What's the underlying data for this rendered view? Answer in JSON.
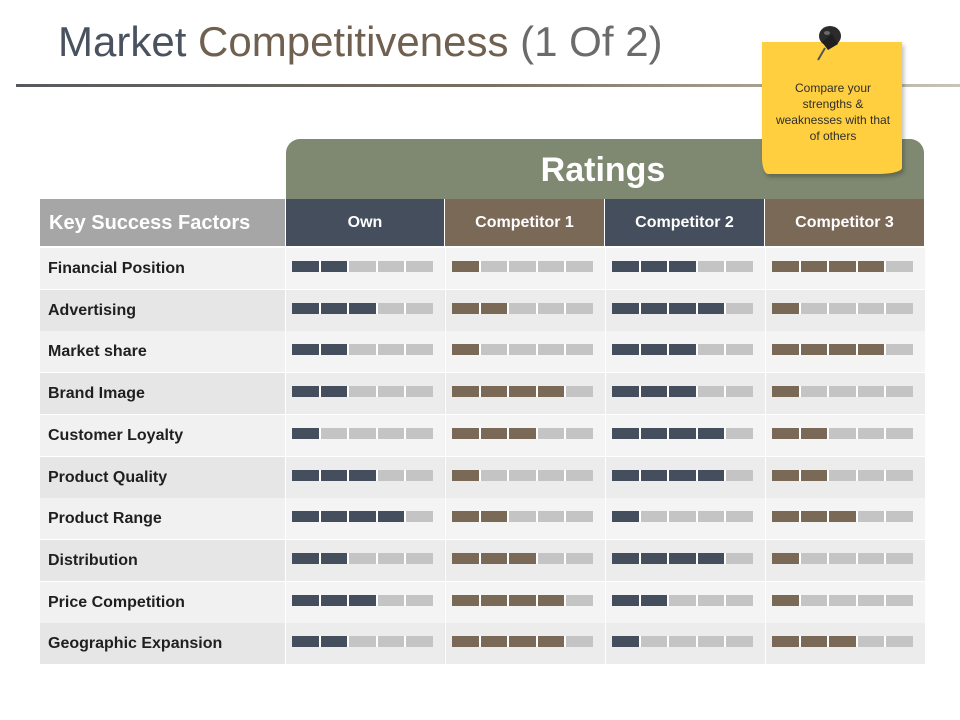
{
  "title": {
    "part1": "Market",
    "part2": "Competitiveness",
    "part3": "(1 Of 2)"
  },
  "note": {
    "text": "Compare your strengths & weaknesses with that of others",
    "color": "#ffcf40"
  },
  "ratings_label": "Ratings",
  "columns": {
    "factor": "Key Success Factors",
    "own": "Own",
    "c1": "Competitor 1",
    "c2": "Competitor 2",
    "c3": "Competitor 3"
  },
  "colors": {
    "own": "#454e5c",
    "c1": "#7b6957",
    "c2": "#454e5c",
    "c3": "#7b6957",
    "empty": "#c4c4c4",
    "header_green": "#7f8870"
  },
  "rating_scale_max": 5,
  "rows": [
    {
      "factor": "Financial Position",
      "own": 2,
      "c1": 1,
      "c2": 3,
      "c3": 4
    },
    {
      "factor": "Advertising",
      "own": 3,
      "c1": 2,
      "c2": 4,
      "c3": 1
    },
    {
      "factor": "Market share",
      "own": 2,
      "c1": 1,
      "c2": 3,
      "c3": 4
    },
    {
      "factor": "Brand Image",
      "own": 2,
      "c1": 4,
      "c2": 3,
      "c3": 1
    },
    {
      "factor": "Customer Loyalty",
      "own": 1,
      "c1": 3,
      "c2": 4,
      "c3": 2
    },
    {
      "factor": "Product Quality",
      "own": 3,
      "c1": 1,
      "c2": 4,
      "c3": 2
    },
    {
      "factor": "Product Range",
      "own": 4,
      "c1": 2,
      "c2": 1,
      "c3": 3
    },
    {
      "factor": "Distribution",
      "own": 2,
      "c1": 3,
      "c2": 4,
      "c3": 1
    },
    {
      "factor": "Price Competition",
      "own": 3,
      "c1": 4,
      "c2": 2,
      "c3": 1
    },
    {
      "factor": "Geographic Expansion",
      "own": 2,
      "c1": 4,
      "c2": 1,
      "c3": 3
    }
  ]
}
